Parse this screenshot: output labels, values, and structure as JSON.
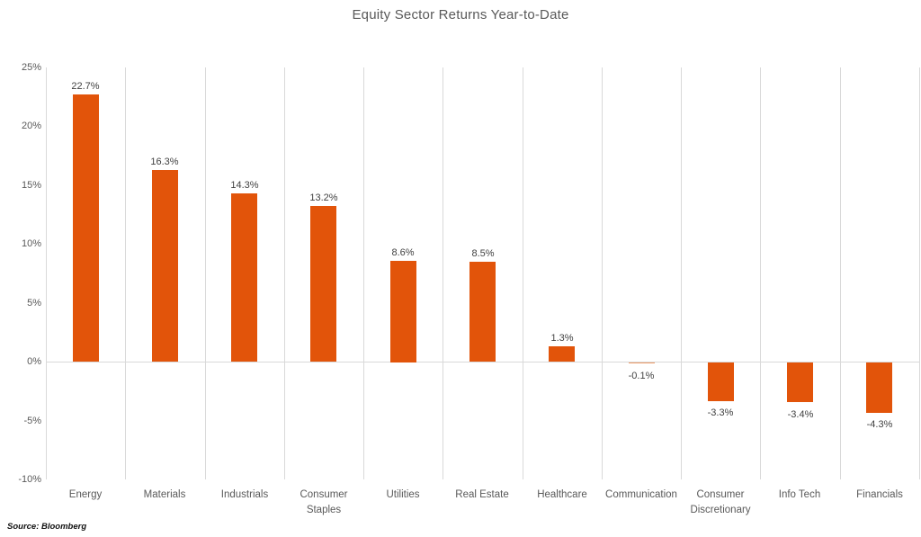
{
  "chart_data": {
    "type": "bar",
    "title": "Equity Sector Returns Year-to-Date",
    "categories": [
      "Energy",
      "Materials",
      "Industrials",
      "Consumer Staples",
      "Utilities",
      "Real Estate",
      "Healthcare",
      "Communication",
      "Consumer Discretionary",
      "Info Tech",
      "Financials"
    ],
    "values": [
      22.7,
      16.3,
      14.3,
      13.2,
      8.6,
      8.5,
      1.3,
      -0.1,
      -3.3,
      -3.4,
      -4.3
    ],
    "value_labels": [
      "22.7%",
      "16.3%",
      "14.3%",
      "13.2%",
      "8.6%",
      "8.5%",
      "1.3%",
      "-0.1%",
      "-3.3%",
      "-3.4%",
      "-4.3%"
    ],
    "xlabel": "",
    "ylabel": "",
    "ylim": [
      -10,
      25
    ],
    "yticks": [
      {
        "value": 25,
        "label": "25%"
      },
      {
        "value": 20,
        "label": "20%"
      },
      {
        "value": 15,
        "label": "15%"
      },
      {
        "value": 10,
        "label": "10%"
      },
      {
        "value": 5,
        "label": "5%"
      },
      {
        "value": 0,
        "label": "0%"
      },
      {
        "value": -5,
        "label": "-5%"
      },
      {
        "value": -10,
        "label": "-10%"
      }
    ],
    "legend_position": "none",
    "grid": "vertical-category-separators",
    "bar_color": "#e2540a",
    "gridline_color": "#d9d9d9",
    "title_color": "#595959",
    "tick_label_color": "#595959",
    "value_label_color": "#404040"
  },
  "source_note": "Source: Bloomberg"
}
